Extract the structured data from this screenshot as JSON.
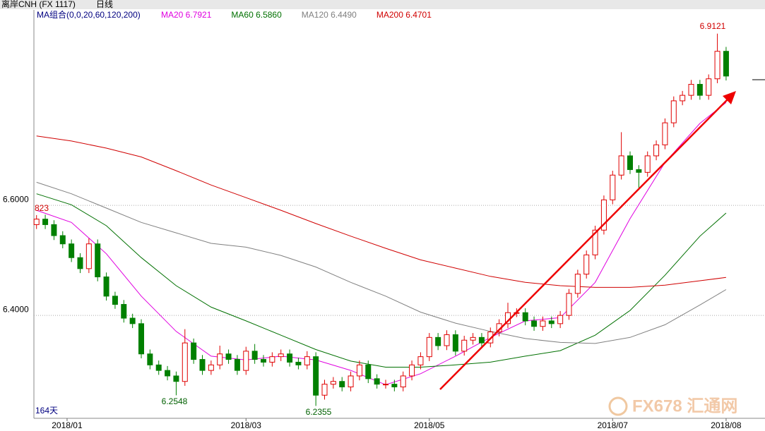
{
  "chart_data": {
    "type": "candlestick",
    "title": "离岸CNH (FX 1117)",
    "period": "日线",
    "legend_title": "MA组合(0,0,20,60,120,200)",
    "days_label": "164天",
    "watermark": "FX678 汇通网",
    "annotations": [
      "6.9121",
      "6.2548",
      "6.2355",
      "823"
    ],
    "xlim": [
      -0.3,
      82
    ],
    "xticks": [
      {
        "value": 3.5,
        "label": "2018/01"
      },
      {
        "value": 24,
        "label": "2018/03"
      },
      {
        "value": 45,
        "label": "2018/05"
      },
      {
        "value": 66,
        "label": "2018/07"
      },
      {
        "value": 79,
        "label": "2018/08"
      }
    ],
    "ylim": [
      6.213,
      6.954
    ],
    "yticks": [
      {
        "value": 6.6,
        "label": "6.6000"
      },
      {
        "value": 6.4,
        "label": "6.4000"
      }
    ],
    "grid": true,
    "up_color": "#e00000",
    "down_color": "#008000",
    "open": [
      6.565,
      6.575,
      6.565,
      6.545,
      6.53,
      6.505,
      6.485,
      6.53,
      6.47,
      6.435,
      6.42,
      6.395,
      6.385,
      6.33,
      6.31,
      6.3,
      6.29,
      6.28,
      6.35,
      6.32,
      6.3,
      6.31,
      6.33,
      6.32,
      6.3,
      6.335,
      6.32,
      6.315,
      6.325,
      6.33,
      6.315,
      6.31,
      6.325,
      6.255,
      6.275,
      6.28,
      6.27,
      6.29,
      6.31,
      6.285,
      6.275,
      6.275,
      6.27,
      6.29,
      6.31,
      6.325,
      6.36,
      6.345,
      6.365,
      6.335,
      6.355,
      6.36,
      6.35,
      6.37,
      6.385,
      6.405,
      6.405,
      6.39,
      6.38,
      6.39,
      6.385,
      6.4,
      6.44,
      6.475,
      6.51,
      6.555,
      6.61,
      6.655,
      6.69,
      6.665,
      6.66,
      6.69,
      6.71,
      6.75,
      6.79,
      6.8,
      6.82,
      6.8,
      6.83,
      6.88
    ],
    "high": [
      6.5823,
      6.583,
      6.573,
      6.553,
      6.538,
      6.513,
      6.54,
      6.538,
      6.478,
      6.443,
      6.428,
      6.403,
      6.393,
      6.338,
      6.318,
      6.308,
      6.298,
      6.375,
      6.358,
      6.328,
      6.318,
      6.345,
      6.338,
      6.328,
      6.343,
      6.348,
      6.328,
      6.333,
      6.338,
      6.338,
      6.323,
      6.335,
      6.333,
      6.283,
      6.288,
      6.288,
      6.298,
      6.318,
      6.318,
      6.293,
      6.283,
      6.283,
      6.298,
      6.318,
      6.333,
      6.368,
      6.368,
      6.373,
      6.373,
      6.363,
      6.368,
      6.368,
      6.378,
      6.393,
      6.423,
      6.413,
      6.413,
      6.398,
      6.398,
      6.398,
      6.408,
      6.448,
      6.483,
      6.518,
      6.563,
      6.618,
      6.663,
      6.733,
      6.698,
      6.673,
      6.698,
      6.718,
      6.758,
      6.798,
      6.808,
      6.828,
      6.828,
      6.838,
      6.9121,
      6.888
    ],
    "low": [
      6.557,
      6.557,
      6.537,
      6.522,
      6.497,
      6.477,
      6.477,
      6.462,
      6.427,
      6.412,
      6.387,
      6.377,
      6.322,
      6.302,
      6.292,
      6.282,
      6.2548,
      6.272,
      6.312,
      6.292,
      6.292,
      6.302,
      6.312,
      6.292,
      6.292,
      6.312,
      6.307,
      6.307,
      6.317,
      6.307,
      6.302,
      6.302,
      6.2355,
      6.247,
      6.267,
      6.262,
      6.262,
      6.282,
      6.277,
      6.267,
      6.267,
      6.262,
      6.262,
      6.282,
      6.302,
      6.317,
      6.337,
      6.337,
      6.327,
      6.327,
      6.347,
      6.342,
      6.342,
      6.362,
      6.377,
      6.397,
      6.382,
      6.372,
      6.372,
      6.377,
      6.377,
      6.392,
      6.432,
      6.467,
      6.502,
      6.547,
      6.602,
      6.647,
      6.657,
      6.632,
      6.652,
      6.682,
      6.702,
      6.742,
      6.782,
      6.792,
      6.792,
      6.792,
      6.822,
      6.827
    ],
    "close": [
      6.575,
      6.565,
      6.545,
      6.53,
      6.505,
      6.485,
      6.53,
      6.47,
      6.435,
      6.42,
      6.395,
      6.385,
      6.33,
      6.31,
      6.3,
      6.29,
      6.28,
      6.35,
      6.32,
      6.3,
      6.31,
      6.33,
      6.32,
      6.3,
      6.335,
      6.32,
      6.315,
      6.325,
      6.33,
      6.315,
      6.31,
      6.325,
      6.255,
      6.275,
      6.28,
      6.27,
      6.29,
      6.31,
      6.285,
      6.275,
      6.275,
      6.27,
      6.29,
      6.31,
      6.325,
      6.36,
      6.345,
      6.365,
      6.335,
      6.355,
      6.36,
      6.35,
      6.37,
      6.385,
      6.405,
      6.405,
      6.39,
      6.38,
      6.39,
      6.385,
      6.4,
      6.44,
      6.475,
      6.51,
      6.555,
      6.61,
      6.655,
      6.69,
      6.665,
      6.66,
      6.69,
      6.71,
      6.75,
      6.79,
      6.8,
      6.82,
      6.8,
      6.83,
      6.88,
      6.835
    ],
    "series": [
      {
        "name": "MA20 6.7921",
        "color": "#e000e0",
        "x": [
          0,
          4,
          8,
          12,
          16,
          20,
          24,
          28,
          32,
          36,
          40,
          44,
          48,
          52,
          56,
          60,
          64,
          68,
          72,
          76,
          79
        ],
        "values": [
          6.591,
          6.569,
          6.512,
          6.435,
          6.371,
          6.326,
          6.319,
          6.326,
          6.319,
          6.3,
          6.274,
          6.294,
          6.326,
          6.36,
          6.39,
          6.396,
          6.46,
          6.576,
          6.678,
          6.749,
          6.787
        ]
      },
      {
        "name": "MA60 6.5860",
        "color": "#007000",
        "x": [
          0,
          4,
          8,
          12,
          16,
          20,
          24,
          28,
          32,
          36,
          40,
          44,
          48,
          52,
          56,
          60,
          64,
          68,
          72,
          76,
          79
        ],
        "values": [
          6.621,
          6.601,
          6.563,
          6.505,
          6.454,
          6.415,
          6.39,
          6.364,
          6.338,
          6.317,
          6.306,
          6.306,
          6.31,
          6.315,
          6.326,
          6.336,
          6.364,
          6.409,
          6.473,
          6.544,
          6.586
        ]
      },
      {
        "name": "MA120 6.4490",
        "color": "#808080",
        "x": [
          0,
          4,
          8,
          12,
          16,
          20,
          24,
          28,
          32,
          36,
          40,
          44,
          48,
          52,
          56,
          60,
          64,
          68,
          72,
          76,
          79
        ],
        "values": [
          6.642,
          6.621,
          6.595,
          6.569,
          6.55,
          6.531,
          6.524,
          6.509,
          6.488,
          6.46,
          6.435,
          6.406,
          6.386,
          6.371,
          6.358,
          6.351,
          6.349,
          6.36,
          6.383,
          6.419,
          6.447
        ]
      },
      {
        "name": "MA200 6.4701",
        "color": "#d00000",
        "x": [
          0,
          4,
          8,
          12,
          16,
          20,
          24,
          28,
          32,
          36,
          40,
          44,
          48,
          52,
          56,
          60,
          64,
          68,
          72,
          76,
          79
        ],
        "values": [
          6.726,
          6.717,
          6.704,
          6.688,
          6.663,
          6.637,
          6.614,
          6.591,
          6.567,
          6.544,
          6.522,
          6.501,
          6.486,
          6.471,
          6.46,
          6.454,
          6.451,
          6.451,
          6.455,
          6.463,
          6.469
        ]
      }
    ]
  }
}
